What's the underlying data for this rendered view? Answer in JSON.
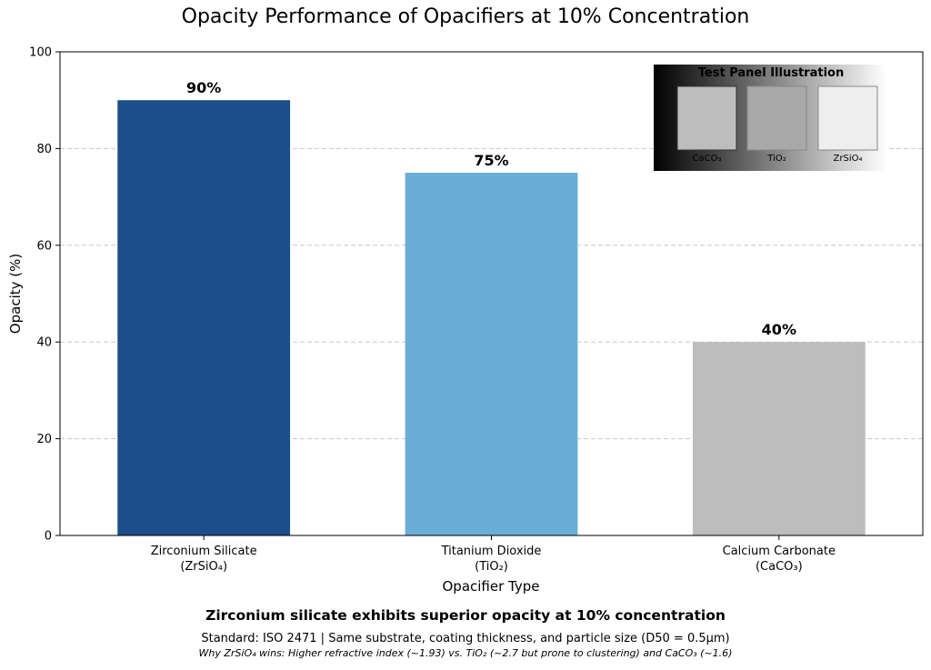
{
  "chart_data": {
    "type": "bar",
    "title": "Opacity Performance of Opacifiers at 10% Concentration",
    "xlabel": "Opacifier Type",
    "ylabel": "Opacity (%)",
    "ylim": [
      0,
      100
    ],
    "yticks": [
      0,
      20,
      40,
      60,
      80,
      100
    ],
    "grid": "horizontal dashed",
    "categories": [
      {
        "line1": "Zirconium Silicate",
        "line2": "(ZrSiO₄)"
      },
      {
        "line1": "Titanium Dioxide",
        "line2": "(TiO₂)"
      },
      {
        "line1": "Calcium Carbonate",
        "line2": "(CaCO₃)"
      }
    ],
    "values": [
      90,
      75,
      40
    ],
    "value_labels": [
      "90%",
      "75%",
      "40%"
    ],
    "colors": [
      "#1c4e8b",
      "#6aaed6",
      "#bdbdbd"
    ]
  },
  "inset": {
    "title": "Test Panel Illustration",
    "panels": [
      {
        "label": "CaCO₃",
        "fill": "#bdbdbd"
      },
      {
        "label": "TiO₂",
        "fill": "#a8a8a8"
      },
      {
        "label": "ZrSiO₄",
        "fill": "#eeeeee"
      }
    ]
  },
  "captions": {
    "main": "Zirconium silicate exhibits superior opacity at 10% concentration",
    "sub": "Standard: ISO 2471 | Same substrate, coating thickness, and particle size (D50 = 0.5μm)",
    "note": "Why ZrSiO₄ wins: Higher refractive index (~1.93) vs. TiO₂ (~2.7 but prone to clustering) and CaCO₃ (~1.6)"
  }
}
